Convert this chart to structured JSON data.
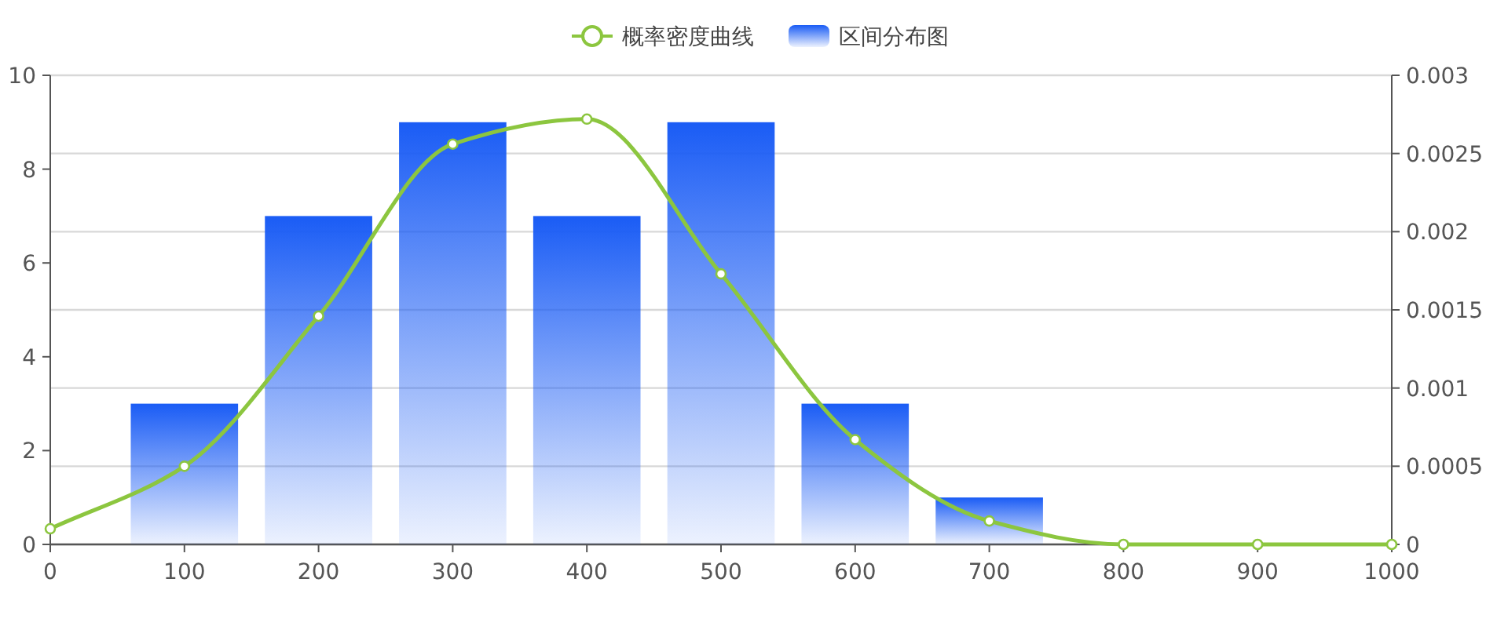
{
  "chart_data": {
    "type": "bar",
    "xlim": [
      0,
      1000
    ],
    "xticks": [
      0,
      100,
      200,
      300,
      400,
      500,
      600,
      700,
      800,
      900,
      1000
    ],
    "ylim": [
      0,
      10
    ],
    "yticks": [
      0,
      2,
      4,
      6,
      8,
      10
    ],
    "y2lim": [
      0,
      0.003
    ],
    "y2ticks": [
      0,
      0.0005,
      0.001,
      0.0015,
      0.002,
      0.0025,
      0.003
    ],
    "grid": true,
    "legend": "top",
    "marker": "circle",
    "series": [
      {
        "name": "概率密度曲线",
        "type": "line",
        "axis": "y2",
        "color": "#8cc63f",
        "x": [
          0,
          100,
          200,
          300,
          400,
          500,
          600,
          700,
          800,
          900,
          1000
        ],
        "values": [
          0.0001,
          0.0005,
          0.00146,
          0.00256,
          0.00272,
          0.00173,
          0.00067,
          0.00015,
          0,
          0,
          0
        ]
      },
      {
        "name": "区间分布图",
        "color": "#1a5cf5",
        "x": [
          100,
          200,
          300,
          400,
          500,
          600,
          700
        ],
        "values": [
          3,
          7,
          9,
          7,
          9,
          3,
          1
        ]
      }
    ]
  }
}
